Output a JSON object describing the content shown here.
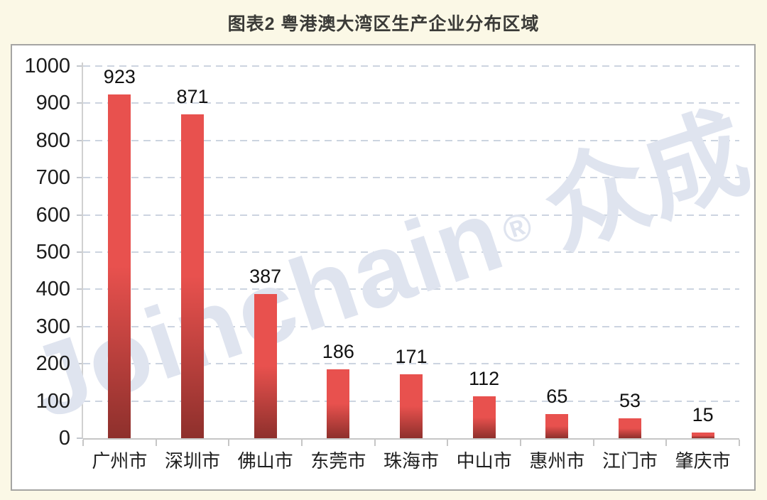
{
  "title": "图表2  粤港澳大湾区生产企业分布区域",
  "watermark": {
    "brand": "Joinchain",
    "reg": "®",
    "name": "众成"
  },
  "chart_data": {
    "type": "bar",
    "title": "图表2 粤港澳大湾区生产企业分布区域",
    "categories": [
      "广州市",
      "深圳市",
      "佛山市",
      "东莞市",
      "珠海市",
      "中山市",
      "惠州市",
      "江门市",
      "肇庆市"
    ],
    "values": [
      923,
      871,
      387,
      186,
      171,
      112,
      65,
      53,
      15
    ],
    "value_labels_shown": true,
    "xlabel": "",
    "ylabel": "",
    "ylim": [
      0,
      1000
    ],
    "ytick_step": 100,
    "yticks": [
      0,
      100,
      200,
      300,
      400,
      500,
      600,
      700,
      800,
      900,
      1000
    ],
    "grid": "horizontal dashed",
    "legend": "none",
    "bar_color_top": "#e8514e",
    "bar_color_bottom": "#8e302c",
    "gridline_color": "#ccd4e0",
    "background_color": "#fbf8e6",
    "panel_color": "#ffffff"
  }
}
